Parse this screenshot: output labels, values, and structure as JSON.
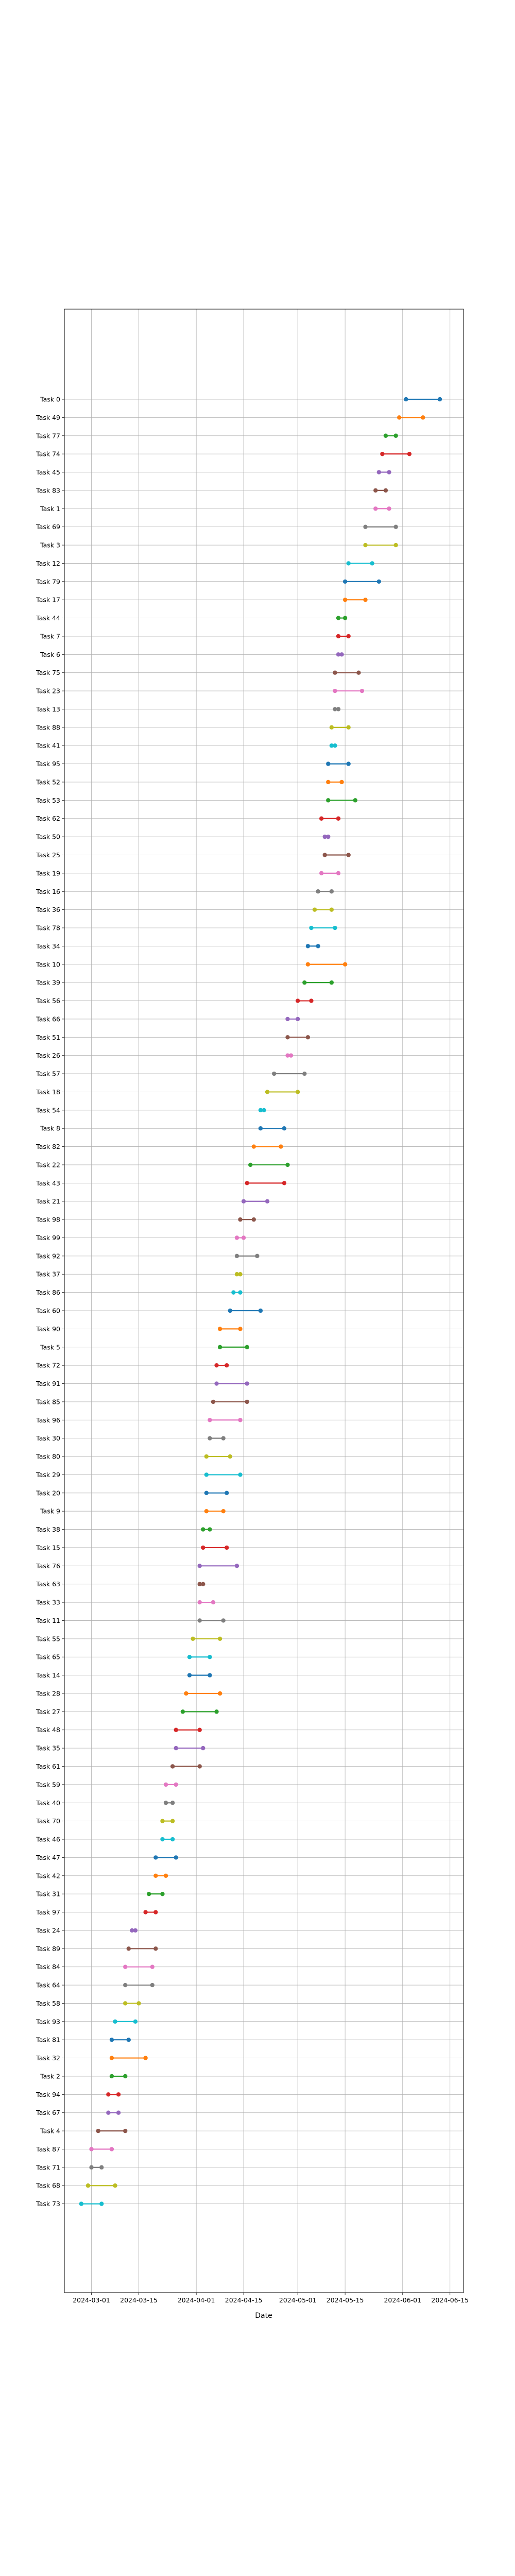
{
  "chart_data": {
    "type": "dumbbell",
    "xlabel": "Date",
    "ylabel": "",
    "x_is_date": true,
    "xlim": [
      "2024-02-22",
      "2024-06-19"
    ],
    "x_ticks": [
      "2024-03-01",
      "2024-03-15",
      "2024-04-01",
      "2024-04-15",
      "2024-05-01",
      "2024-05-15",
      "2024-06-01",
      "2024-06-15"
    ],
    "grid": true,
    "legend": "none",
    "palette": [
      "#1f77b4",
      "#ff7f0e",
      "#2ca02c",
      "#d62728",
      "#9467bd",
      "#8c564b",
      "#e377c2",
      "#7f7f7f",
      "#bcbd22",
      "#17becf"
    ],
    "tasks": [
      {
        "name": "Task 0",
        "start": "2024-06-02",
        "end": "2024-06-12"
      },
      {
        "name": "Task 49",
        "start": "2024-05-31",
        "end": "2024-06-07"
      },
      {
        "name": "Task 77",
        "start": "2024-05-27",
        "end": "2024-05-30"
      },
      {
        "name": "Task 74",
        "start": "2024-05-26",
        "end": "2024-06-03"
      },
      {
        "name": "Task 45",
        "start": "2024-05-25",
        "end": "2024-05-28"
      },
      {
        "name": "Task 83",
        "start": "2024-05-24",
        "end": "2024-05-27"
      },
      {
        "name": "Task 1",
        "start": "2024-05-24",
        "end": "2024-05-28"
      },
      {
        "name": "Task 69",
        "start": "2024-05-21",
        "end": "2024-05-30"
      },
      {
        "name": "Task 3",
        "start": "2024-05-21",
        "end": "2024-05-30"
      },
      {
        "name": "Task 12",
        "start": "2024-05-16",
        "end": "2024-05-23"
      },
      {
        "name": "Task 79",
        "start": "2024-05-15",
        "end": "2024-05-25"
      },
      {
        "name": "Task 17",
        "start": "2024-05-15",
        "end": "2024-05-21"
      },
      {
        "name": "Task 44",
        "start": "2024-05-13",
        "end": "2024-05-15"
      },
      {
        "name": "Task 7",
        "start": "2024-05-13",
        "end": "2024-05-16"
      },
      {
        "name": "Task 6",
        "start": "2024-05-13",
        "end": "2024-05-14"
      },
      {
        "name": "Task 75",
        "start": "2024-05-12",
        "end": "2024-05-19"
      },
      {
        "name": "Task 23",
        "start": "2024-05-12",
        "end": "2024-05-20"
      },
      {
        "name": "Task 13",
        "start": "2024-05-12",
        "end": "2024-05-13"
      },
      {
        "name": "Task 88",
        "start": "2024-05-11",
        "end": "2024-05-16"
      },
      {
        "name": "Task 41",
        "start": "2024-05-11",
        "end": "2024-05-12"
      },
      {
        "name": "Task 95",
        "start": "2024-05-10",
        "end": "2024-05-16"
      },
      {
        "name": "Task 52",
        "start": "2024-05-10",
        "end": "2024-05-14"
      },
      {
        "name": "Task 53",
        "start": "2024-05-10",
        "end": "2024-05-18"
      },
      {
        "name": "Task 62",
        "start": "2024-05-08",
        "end": "2024-05-13"
      },
      {
        "name": "Task 50",
        "start": "2024-05-09",
        "end": "2024-05-10"
      },
      {
        "name": "Task 25",
        "start": "2024-05-09",
        "end": "2024-05-16"
      },
      {
        "name": "Task 19",
        "start": "2024-05-08",
        "end": "2024-05-13"
      },
      {
        "name": "Task 16",
        "start": "2024-05-07",
        "end": "2024-05-11"
      },
      {
        "name": "Task 36",
        "start": "2024-05-06",
        "end": "2024-05-11"
      },
      {
        "name": "Task 78",
        "start": "2024-05-05",
        "end": "2024-05-12"
      },
      {
        "name": "Task 34",
        "start": "2024-05-04",
        "end": "2024-05-07"
      },
      {
        "name": "Task 10",
        "start": "2024-05-04",
        "end": "2024-05-15"
      },
      {
        "name": "Task 39",
        "start": "2024-05-03",
        "end": "2024-05-11"
      },
      {
        "name": "Task 56",
        "start": "2024-05-01",
        "end": "2024-05-05"
      },
      {
        "name": "Task 66",
        "start": "2024-04-28",
        "end": "2024-05-01"
      },
      {
        "name": "Task 51",
        "start": "2024-04-28",
        "end": "2024-05-04"
      },
      {
        "name": "Task 26",
        "start": "2024-04-28",
        "end": "2024-04-29"
      },
      {
        "name": "Task 57",
        "start": "2024-04-24",
        "end": "2024-05-03"
      },
      {
        "name": "Task 18",
        "start": "2024-04-22",
        "end": "2024-05-01"
      },
      {
        "name": "Task 54",
        "start": "2024-04-20",
        "end": "2024-04-21"
      },
      {
        "name": "Task 8",
        "start": "2024-04-20",
        "end": "2024-04-27"
      },
      {
        "name": "Task 82",
        "start": "2024-04-18",
        "end": "2024-04-26"
      },
      {
        "name": "Task 22",
        "start": "2024-04-17",
        "end": "2024-04-28"
      },
      {
        "name": "Task 43",
        "start": "2024-04-16",
        "end": "2024-04-27"
      },
      {
        "name": "Task 21",
        "start": "2024-04-15",
        "end": "2024-04-22"
      },
      {
        "name": "Task 98",
        "start": "2024-04-14",
        "end": "2024-04-18"
      },
      {
        "name": "Task 99",
        "start": "2024-04-13",
        "end": "2024-04-15"
      },
      {
        "name": "Task 92",
        "start": "2024-04-13",
        "end": "2024-04-19"
      },
      {
        "name": "Task 37",
        "start": "2024-04-13",
        "end": "2024-04-14"
      },
      {
        "name": "Task 86",
        "start": "2024-04-12",
        "end": "2024-04-14"
      },
      {
        "name": "Task 60",
        "start": "2024-04-11",
        "end": "2024-04-20"
      },
      {
        "name": "Task 90",
        "start": "2024-04-08",
        "end": "2024-04-14"
      },
      {
        "name": "Task 5",
        "start": "2024-04-08",
        "end": "2024-04-16"
      },
      {
        "name": "Task 72",
        "start": "2024-04-07",
        "end": "2024-04-10"
      },
      {
        "name": "Task 91",
        "start": "2024-04-07",
        "end": "2024-04-16"
      },
      {
        "name": "Task 85",
        "start": "2024-04-06",
        "end": "2024-04-16"
      },
      {
        "name": "Task 96",
        "start": "2024-04-05",
        "end": "2024-04-14"
      },
      {
        "name": "Task 30",
        "start": "2024-04-05",
        "end": "2024-04-09"
      },
      {
        "name": "Task 80",
        "start": "2024-04-04",
        "end": "2024-04-11"
      },
      {
        "name": "Task 29",
        "start": "2024-04-04",
        "end": "2024-04-14"
      },
      {
        "name": "Task 20",
        "start": "2024-04-04",
        "end": "2024-04-10"
      },
      {
        "name": "Task 9",
        "start": "2024-04-04",
        "end": "2024-04-09"
      },
      {
        "name": "Task 38",
        "start": "2024-04-03",
        "end": "2024-04-05"
      },
      {
        "name": "Task 15",
        "start": "2024-04-03",
        "end": "2024-04-10"
      },
      {
        "name": "Task 76",
        "start": "2024-04-02",
        "end": "2024-04-13"
      },
      {
        "name": "Task 63",
        "start": "2024-04-02",
        "end": "2024-04-03"
      },
      {
        "name": "Task 33",
        "start": "2024-04-02",
        "end": "2024-04-06"
      },
      {
        "name": "Task 11",
        "start": "2024-04-02",
        "end": "2024-04-09"
      },
      {
        "name": "Task 55",
        "start": "2024-03-31",
        "end": "2024-04-08"
      },
      {
        "name": "Task 65",
        "start": "2024-03-30",
        "end": "2024-04-05"
      },
      {
        "name": "Task 14",
        "start": "2024-03-30",
        "end": "2024-04-05"
      },
      {
        "name": "Task 28",
        "start": "2024-03-29",
        "end": "2024-04-08"
      },
      {
        "name": "Task 27",
        "start": "2024-03-28",
        "end": "2024-04-07"
      },
      {
        "name": "Task 48",
        "start": "2024-03-26",
        "end": "2024-04-02"
      },
      {
        "name": "Task 35",
        "start": "2024-03-26",
        "end": "2024-04-03"
      },
      {
        "name": "Task 61",
        "start": "2024-03-25",
        "end": "2024-04-02"
      },
      {
        "name": "Task 59",
        "start": "2024-03-23",
        "end": "2024-03-26"
      },
      {
        "name": "Task 40",
        "start": "2024-03-23",
        "end": "2024-03-25"
      },
      {
        "name": "Task 70",
        "start": "2024-03-22",
        "end": "2024-03-25"
      },
      {
        "name": "Task 46",
        "start": "2024-03-22",
        "end": "2024-03-25"
      },
      {
        "name": "Task 47",
        "start": "2024-03-20",
        "end": "2024-03-26"
      },
      {
        "name": "Task 42",
        "start": "2024-03-20",
        "end": "2024-03-23"
      },
      {
        "name": "Task 31",
        "start": "2024-03-18",
        "end": "2024-03-22"
      },
      {
        "name": "Task 97",
        "start": "2024-03-17",
        "end": "2024-03-20"
      },
      {
        "name": "Task 24",
        "start": "2024-03-13",
        "end": "2024-03-14"
      },
      {
        "name": "Task 89",
        "start": "2024-03-12",
        "end": "2024-03-20"
      },
      {
        "name": "Task 84",
        "start": "2024-03-11",
        "end": "2024-03-19"
      },
      {
        "name": "Task 64",
        "start": "2024-03-11",
        "end": "2024-03-19"
      },
      {
        "name": "Task 58",
        "start": "2024-03-11",
        "end": "2024-03-15"
      },
      {
        "name": "Task 93",
        "start": "2024-03-08",
        "end": "2024-03-14"
      },
      {
        "name": "Task 81",
        "start": "2024-03-07",
        "end": "2024-03-12"
      },
      {
        "name": "Task 32",
        "start": "2024-03-07",
        "end": "2024-03-17"
      },
      {
        "name": "Task 2",
        "start": "2024-03-07",
        "end": "2024-03-11"
      },
      {
        "name": "Task 94",
        "start": "2024-03-06",
        "end": "2024-03-09"
      },
      {
        "name": "Task 67",
        "start": "2024-03-06",
        "end": "2024-03-09"
      },
      {
        "name": "Task 4",
        "start": "2024-03-03",
        "end": "2024-03-11"
      },
      {
        "name": "Task 87",
        "start": "2024-03-01",
        "end": "2024-03-07"
      },
      {
        "name": "Task 71",
        "start": "2024-03-01",
        "end": "2024-03-04"
      },
      {
        "name": "Task 68",
        "start": "2024-02-29",
        "end": "2024-03-08"
      },
      {
        "name": "Task 73",
        "start": "2024-02-27",
        "end": "2024-03-04"
      }
    ]
  }
}
